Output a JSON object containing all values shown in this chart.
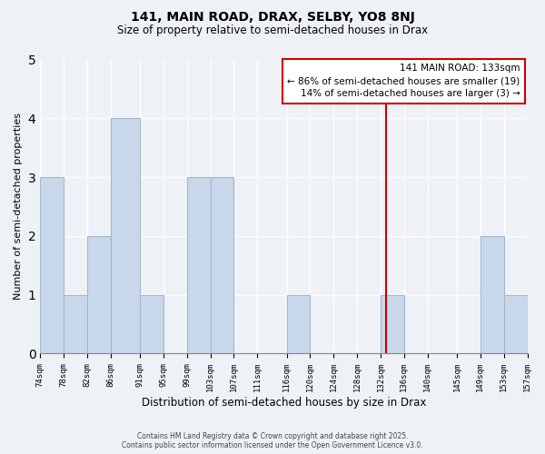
{
  "title": "141, MAIN ROAD, DRAX, SELBY, YO8 8NJ",
  "subtitle": "Size of property relative to semi-detached houses in Drax",
  "xlabel": "Distribution of semi-detached houses by size in Drax",
  "ylabel": "Number of semi-detached properties",
  "bar_edges": [
    74,
    78,
    82,
    86,
    91,
    95,
    99,
    103,
    107,
    111,
    116,
    120,
    124,
    128,
    132,
    136,
    140,
    145,
    149,
    153,
    157
  ],
  "bar_labels": [
    "74sqm",
    "78sqm",
    "82sqm",
    "86sqm",
    "91sqm",
    "95sqm",
    "99sqm",
    "103sqm",
    "107sqm",
    "111sqm",
    "116sqm",
    "120sqm",
    "124sqm",
    "128sqm",
    "132sqm",
    "136sqm",
    "140sqm",
    "145sqm",
    "149sqm",
    "153sqm",
    "157sqm"
  ],
  "bar_heights": [
    3,
    1,
    2,
    4,
    1,
    0,
    3,
    3,
    0,
    0,
    1,
    0,
    0,
    0,
    1,
    0,
    0,
    0,
    2,
    1
  ],
  "bar_color": "#c8d8ea",
  "bar_edge_color": "#a0b8cc",
  "property_line_x": 133,
  "property_line_color": "#cc0000",
  "annotation_title": "141 MAIN ROAD: 133sqm",
  "annotation_line1": "← 86% of semi-detached houses are smaller (19)",
  "annotation_line2": "14% of semi-detached houses are larger (3) →",
  "annotation_box_color": "#ffffff",
  "annotation_box_edge_color": "#cc0000",
  "ylim": [
    0,
    5
  ],
  "yticks": [
    0,
    1,
    2,
    3,
    4,
    5
  ],
  "background_color": "#eef2f7",
  "footer_line1": "Contains HM Land Registry data © Crown copyright and database right 2025.",
  "footer_line2": "Contains public sector information licensed under the Open Government Licence v3.0."
}
